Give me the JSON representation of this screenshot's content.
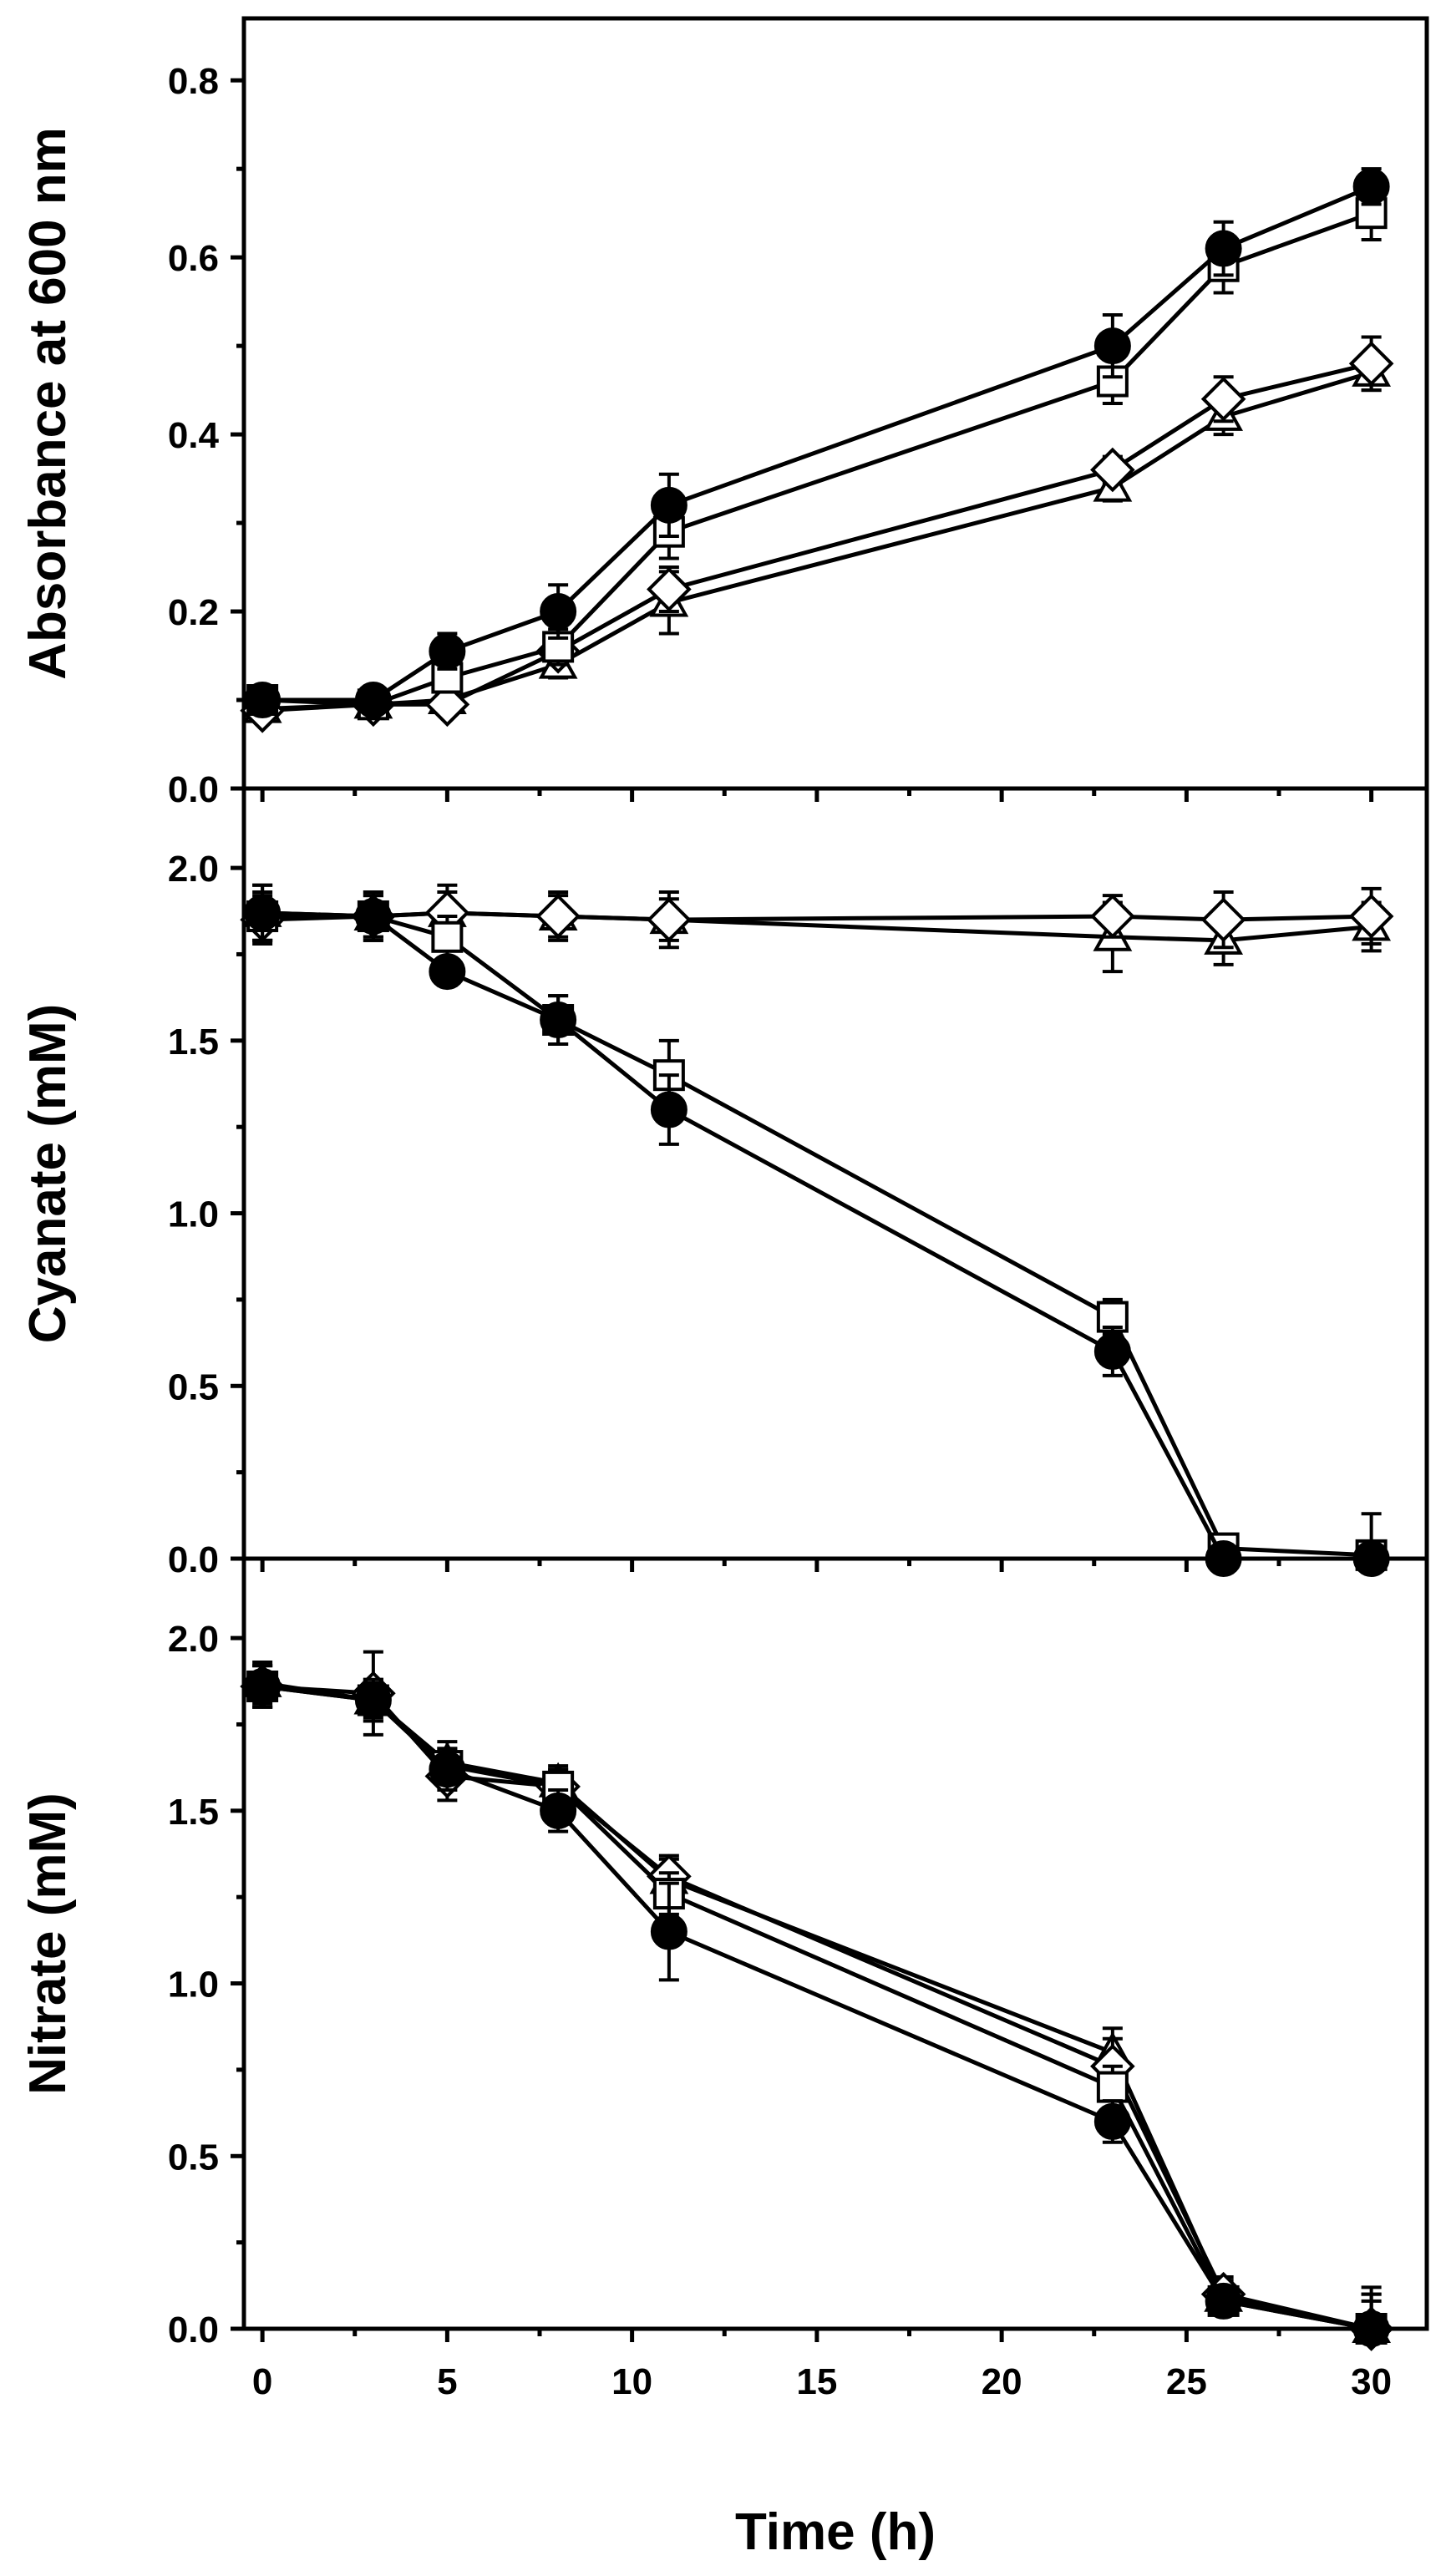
{
  "figure": {
    "x_axis": {
      "label": "Time (h)",
      "range": [
        -0.5,
        31.5
      ],
      "major_ticks": [
        0,
        5,
        10,
        15,
        20,
        25,
        30
      ],
      "minor_ticks": [
        2.5,
        7.5,
        12.5,
        17.5,
        22.5,
        27.5
      ]
    },
    "colors": {
      "line": "#000000",
      "fill_open": "#ffffff",
      "fill_closed": "#000000"
    },
    "legend": "none"
  },
  "chart_data": [
    {
      "type": "line",
      "title": "",
      "xlabel": "Time (h)",
      "ylabel": "Absorbance at 600 nm",
      "xlim": [
        -0.5,
        31.5
      ],
      "ylim": [
        0,
        0.87
      ],
      "yticks": [
        0.0,
        0.2,
        0.4,
        0.6,
        0.8
      ],
      "ytick_labels": [
        "0.0",
        "0.2",
        "0.4",
        "0.6",
        "0.8"
      ],
      "yminor": [
        0.1,
        0.3,
        0.5,
        0.7
      ],
      "x": [
        0,
        3,
        5,
        8,
        11,
        23,
        26,
        30
      ],
      "series": [
        {
          "name": "filled-circle",
          "marker": "circle",
          "fill": "closed",
          "values": [
            0.1,
            0.1,
            0.155,
            0.2,
            0.32,
            0.5,
            0.61,
            0.68
          ],
          "errors": [
            0.01,
            0.01,
            0.02,
            0.03,
            0.035,
            0.035,
            0.03,
            0.02
          ]
        },
        {
          "name": "open-square",
          "marker": "square",
          "fill": "open",
          "values": [
            0.1,
            0.095,
            0.125,
            0.16,
            0.29,
            0.46,
            0.59,
            0.65
          ],
          "errors": [
            0.01,
            0.01,
            0.015,
            0.02,
            0.03,
            0.025,
            0.03,
            0.03
          ]
        },
        {
          "name": "open-triangle",
          "marker": "triangle",
          "fill": "open",
          "values": [
            0.09,
            0.095,
            0.1,
            0.14,
            0.21,
            0.34,
            0.42,
            0.47
          ],
          "errors": [
            0.01,
            0.01,
            0.01,
            0.015,
            0.035,
            0.015,
            0.02,
            0.02
          ]
        },
        {
          "name": "open-diamond",
          "marker": "diamond",
          "fill": "open",
          "values": [
            0.088,
            0.095,
            0.095,
            0.155,
            0.225,
            0.36,
            0.44,
            0.48
          ],
          "errors": [
            0.01,
            0.01,
            0.01,
            0.015,
            0.025,
            0.015,
            0.025,
            0.03
          ]
        }
      ]
    },
    {
      "type": "line",
      "title": "",
      "xlabel": "Time (h)",
      "ylabel": "Cyanate (mM)",
      "xlim": [
        -0.5,
        31.5
      ],
      "ylim": [
        0,
        2.23
      ],
      "yticks": [
        0.0,
        0.5,
        1.0,
        1.5,
        2.0
      ],
      "ytick_labels": [
        "0.0",
        "0.5",
        "1.0",
        "1.5",
        "2.0"
      ],
      "yminor": [
        0.25,
        0.75,
        1.25,
        1.75
      ],
      "x": [
        0,
        3,
        5,
        8,
        11,
        23,
        26,
        30
      ],
      "series": [
        {
          "name": "filled-circle",
          "marker": "circle",
          "fill": "closed",
          "values": [
            1.87,
            1.86,
            1.7,
            1.56,
            1.3,
            0.6,
            0.0,
            0.0
          ],
          "errors": [
            0.08,
            0.07,
            0.04,
            0.07,
            0.1,
            0.07,
            0.02,
            0.02
          ]
        },
        {
          "name": "open-square",
          "marker": "square",
          "fill": "open",
          "values": [
            1.86,
            1.86,
            1.8,
            1.56,
            1.4,
            0.7,
            0.03,
            0.01
          ],
          "errors": [
            0.07,
            0.07,
            0.06,
            0.07,
            0.1,
            0.05,
            0.04,
            0.12
          ]
        },
        {
          "name": "open-triangle",
          "marker": "triangle",
          "fill": "open",
          "values": [
            1.87,
            1.86,
            1.87,
            1.86,
            1.85,
            1.8,
            1.79,
            1.83
          ],
          "errors": [
            0.08,
            0.06,
            0.06,
            0.06,
            0.06,
            0.1,
            0.07,
            0.07
          ]
        },
        {
          "name": "open-diamond",
          "marker": "diamond",
          "fill": "open",
          "values": [
            1.85,
            1.86,
            1.87,
            1.86,
            1.85,
            1.86,
            1.85,
            1.86
          ],
          "errors": [
            0.07,
            0.06,
            0.08,
            0.07,
            0.08,
            0.06,
            0.08,
            0.08
          ]
        }
      ]
    },
    {
      "type": "line",
      "title": "",
      "xlabel": "Time (h)",
      "ylabel": "Nitrate (mM)",
      "xlim": [
        -0.5,
        31.5
      ],
      "ylim": [
        0,
        2.23
      ],
      "yticks": [
        0.0,
        0.5,
        1.0,
        1.5,
        2.0
      ],
      "ytick_labels": [
        "0.0",
        "0.5",
        "1.0",
        "1.5",
        "2.0"
      ],
      "yminor": [
        0.25,
        0.75,
        1.25,
        1.75
      ],
      "x": [
        0,
        3,
        5,
        8,
        11,
        23,
        26,
        30
      ],
      "series": [
        {
          "name": "filled-circle",
          "marker": "circle",
          "fill": "closed",
          "values": [
            1.86,
            1.82,
            1.62,
            1.5,
            1.15,
            0.6,
            0.08,
            0.0
          ],
          "errors": [
            0.06,
            0.06,
            0.06,
            0.06,
            0.14,
            0.06,
            0.04,
            0.12
          ]
        },
        {
          "name": "open-square",
          "marker": "square",
          "fill": "open",
          "values": [
            1.86,
            1.82,
            1.63,
            1.57,
            1.26,
            0.7,
            0.08,
            0.0
          ],
          "errors": [
            0.06,
            0.05,
            0.05,
            0.05,
            0.06,
            0.06,
            0.04,
            0.1
          ]
        },
        {
          "name": "open-triangle",
          "marker": "triangle",
          "fill": "open",
          "values": [
            1.87,
            1.82,
            1.64,
            1.58,
            1.3,
            0.8,
            0.09,
            0.0
          ],
          "errors": [
            0.06,
            0.06,
            0.06,
            0.05,
            0.07,
            0.07,
            0.05,
            0.1
          ]
        },
        {
          "name": "open-diamond",
          "marker": "diamond",
          "fill": "open",
          "values": [
            1.86,
            1.84,
            1.6,
            1.57,
            1.31,
            0.76,
            0.1,
            0.0
          ],
          "errors": [
            0.06,
            0.12,
            0.07,
            0.05,
            0.05,
            0.08,
            0.05,
            0.08
          ]
        }
      ]
    }
  ]
}
